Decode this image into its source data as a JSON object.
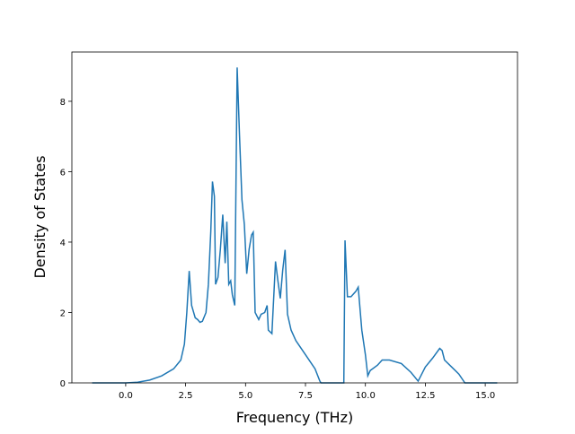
{
  "chart_data": {
    "type": "line",
    "xlabel": "Frequency (THz)",
    "ylabel": "Density of States",
    "x": [
      -1.4,
      0.0,
      0.5,
      1.0,
      1.5,
      2.0,
      2.3,
      2.45,
      2.55,
      2.65,
      2.75,
      2.9,
      3.0,
      3.1,
      3.2,
      3.35,
      3.45,
      3.55,
      3.62,
      3.7,
      3.75,
      3.85,
      3.95,
      4.05,
      4.15,
      4.22,
      4.3,
      4.38,
      4.45,
      4.55,
      4.65,
      4.75,
      4.85,
      4.95,
      5.05,
      5.15,
      5.25,
      5.32,
      5.4,
      5.55,
      5.65,
      5.8,
      5.9,
      5.95,
      6.1,
      6.25,
      6.35,
      6.45,
      6.55,
      6.65,
      6.75,
      6.9,
      7.1,
      7.5,
      7.9,
      8.1,
      8.15,
      9.0,
      9.1,
      9.15,
      9.25,
      9.4,
      9.6,
      9.7,
      9.85,
      10.0,
      10.1,
      10.2,
      10.5,
      10.7,
      11.0,
      11.5,
      11.9,
      12.2,
      12.5,
      12.8,
      13.1,
      13.2,
      13.3,
      13.6,
      13.9,
      14.15,
      14.5,
      15.5
    ],
    "series": [
      {
        "color": "#1f77b4",
        "values": [
          0,
          0,
          0.02,
          0.08,
          0.2,
          0.4,
          0.65,
          1.1,
          2.0,
          3.18,
          2.2,
          1.85,
          1.8,
          1.72,
          1.75,
          2.0,
          2.8,
          4.3,
          5.72,
          5.3,
          2.8,
          3.0,
          3.8,
          4.78,
          3.4,
          4.58,
          2.8,
          2.9,
          2.5,
          2.2,
          8.96,
          7.0,
          5.2,
          4.5,
          3.1,
          3.8,
          4.2,
          4.28,
          2.0,
          1.8,
          1.95,
          2.0,
          2.2,
          1.5,
          1.4,
          3.45,
          2.9,
          2.4,
          3.2,
          3.78,
          1.95,
          1.5,
          1.2,
          0.8,
          0.4,
          0.05,
          0,
          0,
          0,
          4.05,
          2.45,
          2.45,
          2.6,
          2.72,
          1.5,
          0.8,
          0.2,
          0.35,
          0.5,
          0.65,
          0.65,
          0.55,
          0.3,
          0.05,
          0.45,
          0.7,
          0.98,
          0.92,
          0.65,
          0.45,
          0.25,
          0,
          0,
          0
        ]
      }
    ],
    "xlim": [
      -2.245,
      16.345
    ],
    "xticks": [
      {
        "value": 0,
        "label": "0.0"
      },
      2.5,
      {
        "value": 5,
        "label": "5.0"
      },
      {
        "value": 7.5,
        "label": "7.5"
      },
      {
        "value": 10,
        "label": "10.0"
      },
      12.5,
      {
        "value": 15,
        "label": "15.0"
      }
    ],
    "ylim": [
      0,
      9.4
    ],
    "yticks": [
      0,
      2,
      4,
      6,
      8
    ]
  }
}
